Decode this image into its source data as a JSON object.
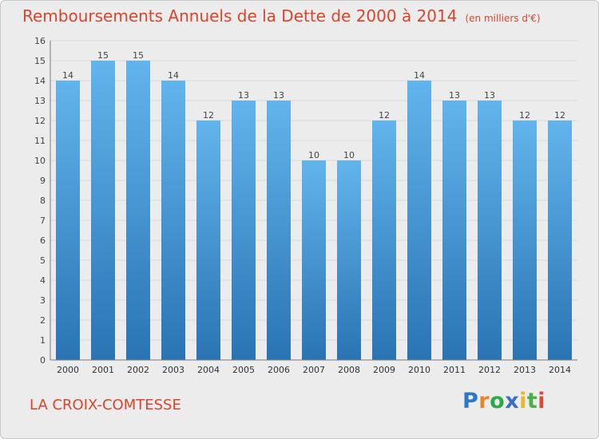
{
  "chart_data": {
    "type": "bar",
    "title": "Remboursements Annuels de la Dette de 2000 à 2014",
    "subtitle": "(en milliers d'€)",
    "categories": [
      "2000",
      "2001",
      "2002",
      "2003",
      "2004",
      "2005",
      "2006",
      "2007",
      "2008",
      "2009",
      "2010",
      "2011",
      "2012",
      "2013",
      "2014"
    ],
    "values": [
      14,
      15,
      15,
      14,
      12,
      13,
      13,
      10,
      10,
      12,
      14,
      13,
      13,
      12,
      12
    ],
    "y_ticks": [
      "0",
      "1",
      "2",
      "3",
      "4",
      "5",
      "6",
      "7",
      "8",
      "9",
      "10",
      "11",
      "12",
      "13",
      "14",
      "15",
      "16"
    ],
    "ylim": [
      0,
      16
    ],
    "xlabel": "",
    "ylabel": "",
    "grid": true,
    "colors": {
      "bar_top": "#62b4ec",
      "bar_bottom": "#2a74b4",
      "grid": "#d8d8d8"
    }
  },
  "footer": {
    "commune": "LA CROIX-COMTESSE",
    "brand": "Proxiti"
  }
}
